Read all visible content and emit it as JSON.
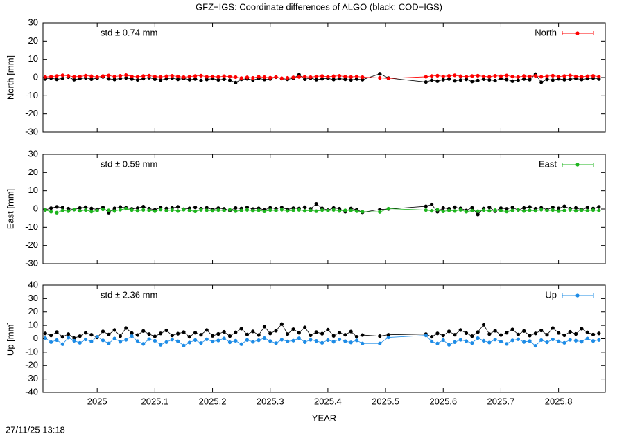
{
  "title": "GFZ−IGS: Coordinate differences of ALGO (black: COD−IGS)",
  "timestamp": "27/11/25 13:18",
  "chart_data": [
    {
      "type": "line",
      "ylabel": "North [mm]",
      "annotation": "std ± 0.74 mm",
      "xlim": [
        2024.906,
        2025.881
      ],
      "ylim": [
        -30,
        30
      ],
      "yticks": [
        -30,
        -20,
        -10,
        0,
        10,
        20,
        30
      ],
      "x": [
        2024.91,
        2024.92,
        2024.93,
        2024.94,
        2024.95,
        2024.96,
        2024.97,
        2024.98,
        2024.99,
        2025.0,
        2025.01,
        2025.02,
        2025.03,
        2025.04,
        2025.05,
        2025.06,
        2025.07,
        2025.08,
        2025.09,
        2025.1,
        2025.11,
        2025.12,
        2025.13,
        2025.14,
        2025.15,
        2025.16,
        2025.17,
        2025.18,
        2025.19,
        2025.2,
        2025.21,
        2025.22,
        2025.23,
        2025.24,
        2025.25,
        2025.26,
        2025.27,
        2025.28,
        2025.29,
        2025.3,
        2025.31,
        2025.32,
        2025.33,
        2025.34,
        2025.35,
        2025.36,
        2025.37,
        2025.38,
        2025.39,
        2025.4,
        2025.41,
        2025.42,
        2025.43,
        2025.44,
        2025.45,
        2025.46,
        2025.49,
        2025.505,
        2025.57,
        2025.58,
        2025.59,
        2025.6,
        2025.61,
        2025.62,
        2025.63,
        2025.64,
        2025.65,
        2025.66,
        2025.67,
        2025.68,
        2025.69,
        2025.7,
        2025.71,
        2025.72,
        2025.73,
        2025.74,
        2025.75,
        2025.76,
        2025.77,
        2025.78,
        2025.79,
        2025.8,
        2025.81,
        2025.82,
        2025.83,
        2025.84,
        2025.85,
        2025.86,
        2025.87
      ],
      "series": [
        {
          "color": "#000000",
          "values": [
            -0.8,
            -0.3,
            -1.0,
            -0.5,
            0.2,
            -1.2,
            -0.6,
            -0.2,
            -0.9,
            -0.4,
            0.3,
            -0.7,
            -1.1,
            -0.5,
            -0.2,
            -0.8,
            -1.3,
            -0.6,
            -0.1,
            -0.9,
            -1.4,
            -0.7,
            -0.3,
            -1.0,
            -0.5,
            -1.2,
            -0.8,
            -1.6,
            -1.1,
            -0.6,
            -1.3,
            -0.9,
            -1.5,
            -2.8,
            -1.0,
            -0.7,
            -1.4,
            -0.5,
            -1.1,
            -0.8,
            0.2,
            -0.6,
            -1.0,
            -0.4,
            1.5,
            -0.9,
            -0.3,
            -1.2,
            -0.7,
            -0.5,
            -1.1,
            -0.6,
            -1.0,
            -1.3,
            -0.8,
            -1.2,
            2.0,
            -0.3,
            -2.5,
            -1.5,
            -2.0,
            -1.2,
            -0.8,
            -1.8,
            -1.4,
            -1.0,
            -2.2,
            -1.6,
            -0.9,
            -1.3,
            -1.7,
            -0.6,
            -1.1,
            -2.0,
            -1.5,
            -0.8,
            -1.2,
            1.8,
            -2.6,
            -1.0,
            -1.4,
            -0.7,
            -1.2,
            -0.9,
            -0.5,
            -1.1,
            -0.6,
            -0.3,
            -0.8
          ]
        },
        {
          "name": "North",
          "color": "#ff0000",
          "values": [
            0.3,
            0.5,
            0.8,
            1.2,
            0.9,
            0.4,
            0.6,
            1.0,
            0.7,
            0.3,
            0.8,
            1.1,
            0.5,
            0.9,
            1.3,
            0.6,
            0.4,
            0.8,
            1.0,
            0.5,
            0.3,
            0.7,
            0.9,
            0.6,
            0.2,
            0.5,
            0.8,
            1.0,
            0.4,
            0.6,
            0.3,
            0.7,
            0.5,
            0.2,
            -0.3,
            0.1,
            -0.2,
            0.4,
            0.2,
            -0.1,
            0.3,
            -0.4,
            -0.2,
            0.1,
            0.3,
            0.5,
            0.2,
            0.6,
            0.8,
            0.4,
            0.7,
            0.9,
            0.5,
            0.3,
            0.6,
            0.2,
            -0.2,
            -0.5,
            0.4,
            0.8,
            1.0,
            0.6,
            0.9,
            1.2,
            0.7,
            0.5,
            0.8,
            1.0,
            0.6,
            0.4,
            0.9,
            0.7,
            1.1,
            0.5,
            0.3,
            0.8,
            0.6,
            0.9,
            0.4,
            0.7,
            1.0,
            0.5,
            0.8,
            1.1,
            0.6,
            0.4,
            0.7,
            0.9,
            0.5
          ]
        }
      ]
    },
    {
      "type": "line",
      "ylabel": "East [mm]",
      "annotation": "std ± 0.59 mm",
      "xlim": [
        2024.906,
        2025.881
      ],
      "ylim": [
        -30,
        30
      ],
      "yticks": [
        -30,
        -20,
        -10,
        0,
        10,
        20,
        30
      ],
      "x": [
        2024.91,
        2024.92,
        2024.93,
        2024.94,
        2024.95,
        2024.96,
        2024.97,
        2024.98,
        2024.99,
        2025.0,
        2025.01,
        2025.02,
        2025.03,
        2025.04,
        2025.05,
        2025.06,
        2025.07,
        2025.08,
        2025.09,
        2025.1,
        2025.11,
        2025.12,
        2025.13,
        2025.14,
        2025.15,
        2025.16,
        2025.17,
        2025.18,
        2025.19,
        2025.2,
        2025.21,
        2025.22,
        2025.23,
        2025.24,
        2025.25,
        2025.26,
        2025.27,
        2025.28,
        2025.29,
        2025.3,
        2025.31,
        2025.32,
        2025.33,
        2025.34,
        2025.35,
        2025.36,
        2025.37,
        2025.38,
        2025.39,
        2025.4,
        2025.41,
        2025.42,
        2025.43,
        2025.44,
        2025.45,
        2025.46,
        2025.49,
        2025.505,
        2025.57,
        2025.58,
        2025.59,
        2025.6,
        2025.61,
        2025.62,
        2025.63,
        2025.64,
        2025.65,
        2025.66,
        2025.67,
        2025.68,
        2025.69,
        2025.7,
        2025.71,
        2025.72,
        2025.73,
        2025.74,
        2025.75,
        2025.76,
        2025.77,
        2025.78,
        2025.79,
        2025.8,
        2025.81,
        2025.82,
        2025.83,
        2025.84,
        2025.85,
        2025.86,
        2025.87
      ],
      "series": [
        {
          "color": "#000000",
          "values": [
            -0.5,
            0.5,
            1.2,
            0.8,
            0.2,
            -0.3,
            0.6,
            1.0,
            0.3,
            -0.2,
            0.9,
            -2.0,
            0.4,
            1.1,
            0.7,
            0.1,
            0.5,
            1.3,
            0.2,
            -0.4,
            0.8,
            0.3,
            0.6,
            1.2,
            -0.1,
            0.4,
            0.9,
            0.2,
            0.7,
            -0.3,
            0.5,
            0.1,
            -0.8,
            0.6,
            0.3,
            0.9,
            0.0,
            0.4,
            -0.5,
            0.7,
            0.2,
            0.8,
            -0.2,
            0.5,
            0.3,
            1.0,
            0.1,
            2.8,
            0.4,
            -0.6,
            0.6,
            0.2,
            -1.5,
            0.3,
            -0.4,
            -1.8,
            -0.3,
            0.0,
            1.5,
            2.5,
            -1.5,
            0.6,
            0.2,
            1.0,
            0.4,
            -0.8,
            0.7,
            -3.0,
            0.3,
            0.9,
            -1.2,
            0.5,
            0.1,
            0.8,
            -0.5,
            0.6,
            1.2,
            0.2,
            0.7,
            -0.3,
            0.9,
            0.4,
            1.5,
            0.2,
            0.6,
            -0.4,
            0.8,
            0.3,
            1.2
          ]
        },
        {
          "name": "East",
          "color": "#1eb41e",
          "values": [
            -0.5,
            -1.5,
            -2.0,
            -0.8,
            -1.2,
            -0.3,
            -1.0,
            -0.6,
            -1.4,
            -0.9,
            -0.2,
            -0.7,
            -1.1,
            -0.4,
            0.2,
            -0.6,
            -1.0,
            -0.5,
            -0.8,
            -1.2,
            -0.3,
            -0.9,
            -0.6,
            -1.1,
            -0.4,
            -0.8,
            -1.3,
            -0.5,
            -0.7,
            -1.0,
            -0.6,
            -0.9,
            -0.4,
            -1.2,
            -0.8,
            -0.5,
            -1.0,
            -0.7,
            -1.3,
            -0.6,
            -0.9,
            -0.4,
            -1.1,
            -0.7,
            -0.5,
            -1.0,
            -0.8,
            -1.2,
            -0.6,
            -0.9,
            -0.5,
            -1.1,
            -0.7,
            -0.8,
            -1.2,
            -1.5,
            -1.6,
            0.2,
            -0.6,
            -1.0,
            -0.4,
            -1.3,
            -0.8,
            -1.1,
            -0.5,
            -1.5,
            -0.9,
            -1.2,
            -0.7,
            -1.0,
            -0.6,
            -0.9,
            -1.4,
            -0.8,
            -0.5,
            -1.1,
            -0.7,
            -1.0,
            -0.4,
            -0.9,
            -0.6,
            -1.2,
            -0.8,
            -0.5,
            -1.0,
            -0.7,
            -0.9,
            -0.6,
            -0.8
          ]
        }
      ]
    },
    {
      "type": "line",
      "ylabel": "Up [mm]",
      "xlabel": "YEAR",
      "annotation": "std ± 2.36 mm",
      "xlim": [
        2024.906,
        2025.881
      ],
      "xticks": [
        2025,
        2025.1,
        2025.2,
        2025.3,
        2025.4,
        2025.5,
        2025.6,
        2025.7,
        2025.8
      ],
      "ylim": [
        -40,
        40
      ],
      "yticks": [
        -40,
        -30,
        -20,
        -10,
        0,
        10,
        20,
        30,
        40
      ],
      "x": [
        2024.91,
        2024.92,
        2024.93,
        2024.94,
        2024.95,
        2024.96,
        2024.97,
        2024.98,
        2024.99,
        2025.0,
        2025.01,
        2025.02,
        2025.03,
        2025.04,
        2025.05,
        2025.06,
        2025.07,
        2025.08,
        2025.09,
        2025.1,
        2025.11,
        2025.12,
        2025.13,
        2025.14,
        2025.15,
        2025.16,
        2025.17,
        2025.18,
        2025.19,
        2025.2,
        2025.21,
        2025.22,
        2025.23,
        2025.24,
        2025.25,
        2025.26,
        2025.27,
        2025.28,
        2025.29,
        2025.3,
        2025.31,
        2025.32,
        2025.33,
        2025.34,
        2025.35,
        2025.36,
        2025.37,
        2025.38,
        2025.39,
        2025.4,
        2025.41,
        2025.42,
        2025.43,
        2025.44,
        2025.45,
        2025.46,
        2025.49,
        2025.505,
        2025.57,
        2025.58,
        2025.59,
        2025.6,
        2025.61,
        2025.62,
        2025.63,
        2025.64,
        2025.65,
        2025.66,
        2025.67,
        2025.68,
        2025.69,
        2025.7,
        2025.71,
        2025.72,
        2025.73,
        2025.74,
        2025.75,
        2025.76,
        2025.77,
        2025.78,
        2025.79,
        2025.8,
        2025.81,
        2025.82,
        2025.83,
        2025.84,
        2025.85,
        2025.86,
        2025.87
      ],
      "series": [
        {
          "color": "#000000",
          "values": [
            4.0,
            2.5,
            5.0,
            1.5,
            3.5,
            0.5,
            2.0,
            4.5,
            3.0,
            1.0,
            5.5,
            3.2,
            6.5,
            2.0,
            8.0,
            4.2,
            2.8,
            5.8,
            3.5,
            1.8,
            4.0,
            6.2,
            2.5,
            3.8,
            5.0,
            1.5,
            4.5,
            3.0,
            6.5,
            2.2,
            3.6,
            5.2,
            2.0,
            4.8,
            7.5,
            3.2,
            5.5,
            2.8,
            9.0,
            4.0,
            6.0,
            11.0,
            3.5,
            7.2,
            4.5,
            8.5,
            2.6,
            5.0,
            3.8,
            6.8,
            2.2,
            4.6,
            3.0,
            5.4,
            1.5,
            2.8,
            2.0,
            3.0,
            3.5,
            1.5,
            4.0,
            2.5,
            5.5,
            3.0,
            6.5,
            4.2,
            2.0,
            5.0,
            10.5,
            3.5,
            6.0,
            2.8,
            4.5,
            7.0,
            3.2,
            5.8,
            2.4,
            4.0,
            6.2,
            3.0,
            8.0,
            4.4,
            2.6,
            5.2,
            3.6,
            7.5,
            4.8,
            3.2,
            4.0
          ]
        },
        {
          "name": "Up",
          "color": "#1e8ce6",
          "values": [
            0.5,
            -2.5,
            -1.0,
            -4.0,
            0.8,
            -1.5,
            -3.0,
            -0.5,
            -2.0,
            1.5,
            -1.2,
            -3.5,
            0.2,
            -2.2,
            -0.8,
            2.0,
            -1.8,
            -3.8,
            -0.3,
            -1.5,
            -4.5,
            -2.5,
            -0.6,
            -1.9,
            -5.0,
            -2.8,
            -1.0,
            -3.2,
            -0.4,
            -2.1,
            -1.3,
            0.3,
            -2.6,
            -1.5,
            -4.0,
            -0.9,
            -2.3,
            -1.1,
            0.5,
            -1.7,
            -3.3,
            -0.7,
            -2.0,
            -1.4,
            0.4,
            -2.5,
            -0.8,
            -1.6,
            -3.0,
            -1.0,
            -2.2,
            -0.5,
            -1.8,
            -2.7,
            -1.2,
            -3.5,
            -3.5,
            1.0,
            2.5,
            -2.0,
            -3.5,
            -1.0,
            -4.5,
            -2.5,
            -0.8,
            -1.8,
            -3.2,
            0.5,
            -1.5,
            -2.8,
            -0.6,
            -2.1,
            -3.8,
            -1.2,
            -0.4,
            -2.4,
            -1.7,
            -5.2,
            -1.0,
            -2.6,
            -0.5,
            -1.9,
            -3.0,
            -0.8,
            -1.4,
            -2.2,
            0.2,
            -1.6,
            -0.9
          ]
        }
      ]
    }
  ]
}
